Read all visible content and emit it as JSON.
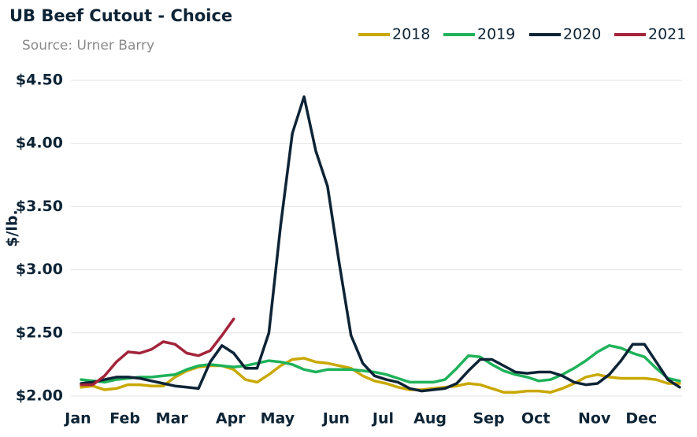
{
  "chart_data": {
    "type": "line",
    "title": "UB Beef Cutout - Choice",
    "subtitle": "Source: Urner Barry",
    "y_label": "$/lb.",
    "categories": [
      "Jan",
      null,
      null,
      null,
      "Feb",
      null,
      null,
      null,
      "Mar",
      null,
      null,
      null,
      null,
      "Apr",
      null,
      null,
      null,
      "May",
      null,
      null,
      null,
      null,
      "Jun",
      null,
      null,
      null,
      "Jul",
      null,
      null,
      null,
      "Aug",
      null,
      null,
      null,
      null,
      "Sep",
      null,
      null,
      null,
      "Oct",
      null,
      null,
      null,
      null,
      "Nov",
      null,
      null,
      null,
      "Dec",
      null,
      null,
      null
    ],
    "series": [
      {
        "name": "2018",
        "color": "#c9a800",
        "values": [
          2.07,
          2.08,
          2.05,
          2.06,
          2.09,
          2.09,
          2.08,
          2.08,
          2.15,
          2.2,
          2.23,
          2.24,
          2.24,
          2.21,
          2.13,
          2.11,
          2.17,
          2.24,
          2.29,
          2.3,
          2.27,
          2.26,
          2.24,
          2.22,
          2.16,
          2.12,
          2.1,
          2.07,
          2.05,
          2.05,
          2.06,
          2.07,
          2.08,
          2.1,
          2.09,
          2.06,
          2.03,
          2.03,
          2.04,
          2.04,
          2.03,
          2.06,
          2.1,
          2.15,
          2.17,
          2.15,
          2.14,
          2.14,
          2.14,
          2.13,
          2.1,
          2.1
        ]
      },
      {
        "name": "2019",
        "color": "#1fb25a",
        "values": [
          2.13,
          2.12,
          2.11,
          2.13,
          2.14,
          2.15,
          2.15,
          2.16,
          2.17,
          2.21,
          2.24,
          2.25,
          2.24,
          2.23,
          2.24,
          2.26,
          2.28,
          2.27,
          2.25,
          2.21,
          2.19,
          2.21,
          2.21,
          2.21,
          2.2,
          2.19,
          2.17,
          2.14,
          2.11,
          2.11,
          2.11,
          2.13,
          2.22,
          2.32,
          2.31,
          2.25,
          2.2,
          2.17,
          2.15,
          2.12,
          2.13,
          2.17,
          2.22,
          2.28,
          2.35,
          2.4,
          2.38,
          2.34,
          2.31,
          2.22,
          2.14,
          2.12
        ]
      },
      {
        "name": "2020",
        "color": "#0d2436",
        "values": [
          2.1,
          2.11,
          2.13,
          2.15,
          2.15,
          2.14,
          2.12,
          2.1,
          2.08,
          2.07,
          2.06,
          2.27,
          2.4,
          2.34,
          2.22,
          2.22,
          2.5,
          3.35,
          4.08,
          4.37,
          3.94,
          3.66,
          3.05,
          2.48,
          2.26,
          2.16,
          2.13,
          2.11,
          2.06,
          2.04,
          2.05,
          2.06,
          2.1,
          2.2,
          2.29,
          2.29,
          2.24,
          2.19,
          2.18,
          2.19,
          2.19,
          2.16,
          2.11,
          2.09,
          2.1,
          2.17,
          2.28,
          2.41,
          2.41,
          2.27,
          2.13,
          2.07
        ]
      },
      {
        "name": "2021",
        "color": "#a3243b",
        "values": [
          2.09,
          2.09,
          2.16,
          2.27,
          2.35,
          2.34,
          2.37,
          2.43,
          2.41,
          2.34,
          2.32,
          2.36,
          2.48,
          2.61,
          null,
          null,
          null,
          null,
          null,
          null,
          null,
          null,
          null,
          null,
          null,
          null,
          null,
          null,
          null,
          null,
          null,
          null,
          null,
          null,
          null,
          null,
          null,
          null,
          null,
          null,
          null,
          null,
          null,
          null,
          null,
          null,
          null,
          null,
          null,
          null,
          null,
          null
        ]
      }
    ],
    "ylim": [
      2,
      4.5
    ],
    "yticks": [
      {
        "value": 2,
        "label": "$2.00"
      },
      {
        "value": 2.5,
        "label": "$2.50"
      },
      {
        "value": 3,
        "label": "$3.00"
      },
      {
        "value": 3.5,
        "label": "$3.50"
      },
      {
        "value": 4,
        "label": "$4.00"
      },
      {
        "value": 4.5,
        "label": "$4.50"
      }
    ],
    "grid": true,
    "legend": "top-right"
  }
}
